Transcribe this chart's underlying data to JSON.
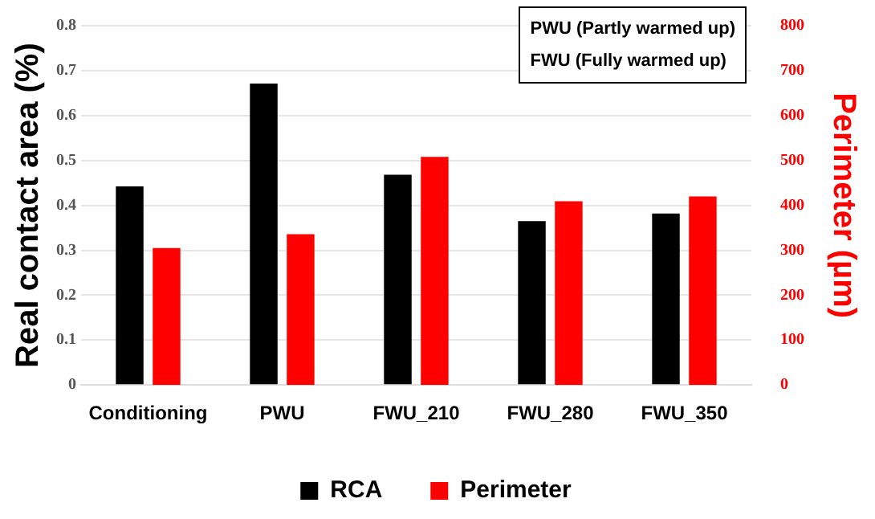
{
  "chart_data": {
    "type": "bar",
    "categories": [
      "Conditioning",
      "PWU",
      "FWU_210",
      "FWU_280",
      "FWU_350"
    ],
    "series": [
      {
        "name": "RCA",
        "color": "#000000",
        "values": [
          0.442,
          0.671,
          0.468,
          0.365,
          0.382
        ]
      },
      {
        "name": "Perimeter",
        "color": "#ff0000",
        "axis": "y2",
        "values": [
          305,
          336,
          508,
          409,
          420
        ]
      }
    ],
    "ylabel": "Real contact area (%)",
    "y2label": "Perimeter (µm)",
    "ylim": [
      0,
      0.8
    ],
    "yticks": [
      0,
      0.1,
      0.2,
      0.3,
      0.4,
      0.5,
      0.6,
      0.7,
      0.8
    ],
    "y2lim": [
      0,
      800
    ],
    "y2ticks": [
      0,
      100,
      200,
      300,
      400,
      500,
      600,
      700,
      800
    ],
    "grid": "y",
    "legend": "bottom",
    "annotations": [
      "PWU (Partly warmed up)",
      "FWU (Fully warmed up)"
    ]
  }
}
